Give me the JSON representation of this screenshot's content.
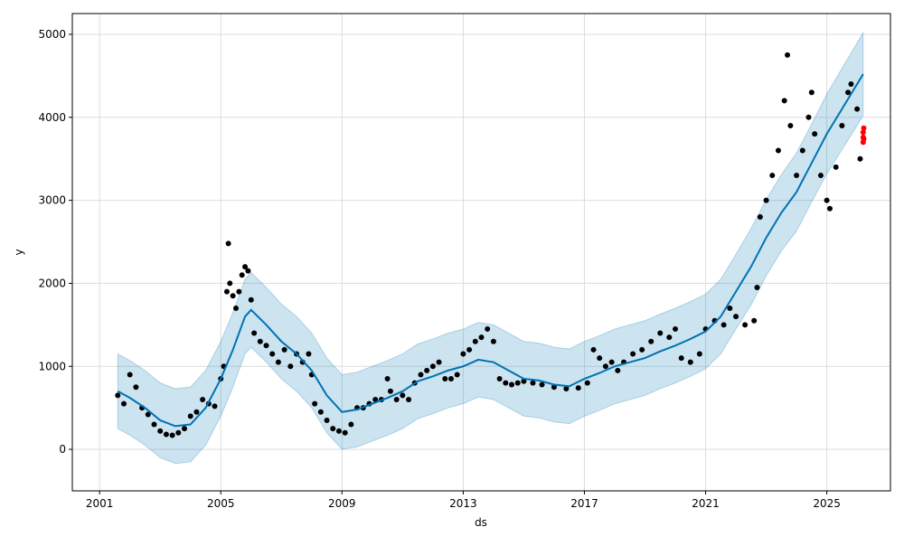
{
  "chart_data": {
    "type": "line",
    "title": "",
    "xlabel": "ds",
    "ylabel": "y",
    "xlim": [
      2000.1,
      2027.1
    ],
    "ylim": [
      -500,
      5250
    ],
    "grid": true,
    "x_ticks": [
      2001,
      2005,
      2009,
      2013,
      2017,
      2021,
      2025
    ],
    "x_tick_labels": [
      "2001",
      "2005",
      "2009",
      "2013",
      "2017",
      "2021",
      "2025"
    ],
    "y_ticks": [
      0,
      1000,
      2000,
      3000,
      4000,
      5000
    ],
    "y_tick_labels": [
      "0",
      "1000",
      "2000",
      "3000",
      "4000",
      "5000"
    ],
    "colors": {
      "forecast": "#0072B2",
      "band": "#0072B2",
      "observed": "#000000",
      "test": "#ff0000"
    },
    "forecast": {
      "name": "yhat",
      "points": [
        [
          2001.6,
          700
        ],
        [
          2002.0,
          620
        ],
        [
          2002.5,
          500
        ],
        [
          2003.0,
          350
        ],
        [
          2003.5,
          280
        ],
        [
          2004.0,
          300
        ],
        [
          2004.5,
          500
        ],
        [
          2005.0,
          850
        ],
        [
          2005.4,
          1200
        ],
        [
          2005.8,
          1600
        ],
        [
          2006.0,
          1680
        ],
        [
          2006.5,
          1500
        ],
        [
          2007.0,
          1300
        ],
        [
          2007.5,
          1150
        ],
        [
          2008.0,
          950
        ],
        [
          2008.5,
          650
        ],
        [
          2009.0,
          450
        ],
        [
          2009.5,
          480
        ],
        [
          2010.0,
          550
        ],
        [
          2010.5,
          620
        ],
        [
          2011.0,
          700
        ],
        [
          2011.5,
          820
        ],
        [
          2012.0,
          880
        ],
        [
          2012.5,
          950
        ],
        [
          2013.0,
          1000
        ],
        [
          2013.5,
          1080
        ],
        [
          2014.0,
          1050
        ],
        [
          2014.5,
          950
        ],
        [
          2015.0,
          850
        ],
        [
          2015.5,
          830
        ],
        [
          2016.0,
          780
        ],
        [
          2016.5,
          760
        ],
        [
          2017.0,
          850
        ],
        [
          2017.5,
          920
        ],
        [
          2018.0,
          1000
        ],
        [
          2018.5,
          1050
        ],
        [
          2019.0,
          1100
        ],
        [
          2019.5,
          1180
        ],
        [
          2020.0,
          1250
        ],
        [
          2020.5,
          1330
        ],
        [
          2021.0,
          1420
        ],
        [
          2021.5,
          1600
        ],
        [
          2022.0,
          1900
        ],
        [
          2022.5,
          2200
        ],
        [
          2023.0,
          2550
        ],
        [
          2023.5,
          2850
        ],
        [
          2024.0,
          3100
        ],
        [
          2024.5,
          3450
        ],
        [
          2025.0,
          3800
        ],
        [
          2025.5,
          4100
        ],
        [
          2026.2,
          4520
        ]
      ],
      "band_halfwidth": [
        450,
        450,
        450,
        450,
        450,
        450,
        450,
        450,
        450,
        450,
        450,
        450,
        450,
        450,
        450,
        450,
        450,
        450,
        450,
        450,
        450,
        450,
        450,
        450,
        450,
        450,
        450,
        450,
        450,
        450,
        450,
        450,
        450,
        450,
        450,
        450,
        450,
        450,
        450,
        450,
        450,
        450,
        450,
        460,
        460,
        460,
        470,
        470,
        480,
        490,
        500
      ]
    },
    "observed": [
      [
        2001.6,
        650
      ],
      [
        2001.8,
        550
      ],
      [
        2002.0,
        900
      ],
      [
        2002.2,
        750
      ],
      [
        2002.4,
        500
      ],
      [
        2002.6,
        420
      ],
      [
        2002.8,
        300
      ],
      [
        2003.0,
        220
      ],
      [
        2003.2,
        180
      ],
      [
        2003.4,
        170
      ],
      [
        2003.6,
        200
      ],
      [
        2003.8,
        250
      ],
      [
        2004.0,
        400
      ],
      [
        2004.2,
        450
      ],
      [
        2004.4,
        600
      ],
      [
        2004.6,
        550
      ],
      [
        2004.8,
        520
      ],
      [
        2005.0,
        850
      ],
      [
        2005.1,
        1000
      ],
      [
        2005.2,
        1900
      ],
      [
        2005.25,
        2480
      ],
      [
        2005.3,
        2000
      ],
      [
        2005.4,
        1850
      ],
      [
        2005.5,
        1700
      ],
      [
        2005.6,
        1900
      ],
      [
        2005.7,
        2100
      ],
      [
        2005.8,
        2200
      ],
      [
        2005.9,
        2150
      ],
      [
        2006.0,
        1800
      ],
      [
        2006.1,
        1400
      ],
      [
        2006.3,
        1300
      ],
      [
        2006.5,
        1250
      ],
      [
        2006.7,
        1150
      ],
      [
        2006.9,
        1050
      ],
      [
        2007.1,
        1200
      ],
      [
        2007.3,
        1000
      ],
      [
        2007.5,
        1150
      ],
      [
        2007.7,
        1050
      ],
      [
        2007.9,
        1150
      ],
      [
        2008.0,
        900
      ],
      [
        2008.1,
        550
      ],
      [
        2008.3,
        450
      ],
      [
        2008.5,
        350
      ],
      [
        2008.7,
        250
      ],
      [
        2008.9,
        220
      ],
      [
        2009.1,
        200
      ],
      [
        2009.3,
        300
      ],
      [
        2009.5,
        500
      ],
      [
        2009.7,
        500
      ],
      [
        2009.9,
        550
      ],
      [
        2010.1,
        600
      ],
      [
        2010.3,
        600
      ],
      [
        2010.5,
        850
      ],
      [
        2010.6,
        700
      ],
      [
        2010.8,
        600
      ],
      [
        2011.0,
        650
      ],
      [
        2011.2,
        600
      ],
      [
        2011.4,
        800
      ],
      [
        2011.6,
        900
      ],
      [
        2011.8,
        950
      ],
      [
        2012.0,
        1000
      ],
      [
        2012.2,
        1050
      ],
      [
        2012.4,
        850
      ],
      [
        2012.6,
        850
      ],
      [
        2012.8,
        900
      ],
      [
        2013.0,
        1150
      ],
      [
        2013.2,
        1200
      ],
      [
        2013.4,
        1300
      ],
      [
        2013.6,
        1350
      ],
      [
        2013.8,
        1450
      ],
      [
        2014.0,
        1300
      ],
      [
        2014.2,
        850
      ],
      [
        2014.4,
        800
      ],
      [
        2014.6,
        780
      ],
      [
        2014.8,
        800
      ],
      [
        2015.0,
        820
      ],
      [
        2015.3,
        800
      ],
      [
        2015.6,
        780
      ],
      [
        2016.0,
        750
      ],
      [
        2016.4,
        730
      ],
      [
        2016.8,
        740
      ],
      [
        2017.1,
        800
      ],
      [
        2017.3,
        1200
      ],
      [
        2017.5,
        1100
      ],
      [
        2017.7,
        1000
      ],
      [
        2017.9,
        1050
      ],
      [
        2018.1,
        950
      ],
      [
        2018.3,
        1050
      ],
      [
        2018.6,
        1150
      ],
      [
        2018.9,
        1200
      ],
      [
        2019.2,
        1300
      ],
      [
        2019.5,
        1400
      ],
      [
        2019.8,
        1350
      ],
      [
        2020.0,
        1450
      ],
      [
        2020.2,
        1100
      ],
      [
        2020.5,
        1050
      ],
      [
        2020.8,
        1150
      ],
      [
        2021.0,
        1450
      ],
      [
        2021.3,
        1550
      ],
      [
        2021.6,
        1500
      ],
      [
        2021.8,
        1700
      ],
      [
        2022.0,
        1600
      ],
      [
        2022.3,
        1500
      ],
      [
        2022.6,
        1550
      ],
      [
        2022.7,
        1950
      ],
      [
        2022.8,
        2800
      ],
      [
        2023.0,
        3000
      ],
      [
        2023.2,
        3300
      ],
      [
        2023.4,
        3600
      ],
      [
        2023.6,
        4200
      ],
      [
        2023.7,
        4750
      ],
      [
        2023.8,
        3900
      ],
      [
        2024.0,
        3300
      ],
      [
        2024.2,
        3600
      ],
      [
        2024.4,
        4000
      ],
      [
        2024.5,
        4300
      ],
      [
        2024.6,
        3800
      ],
      [
        2024.8,
        3300
      ],
      [
        2025.0,
        3000
      ],
      [
        2025.1,
        2900
      ],
      [
        2025.3,
        3400
      ],
      [
        2025.5,
        3900
      ],
      [
        2025.7,
        4300
      ],
      [
        2025.8,
        4400
      ],
      [
        2026.0,
        4100
      ],
      [
        2026.1,
        3500
      ]
    ],
    "test": [
      [
        2026.2,
        3700
      ],
      [
        2026.2,
        3760
      ],
      [
        2026.2,
        3820
      ],
      [
        2026.22,
        3870
      ],
      [
        2026.22,
        3740
      ]
    ]
  }
}
